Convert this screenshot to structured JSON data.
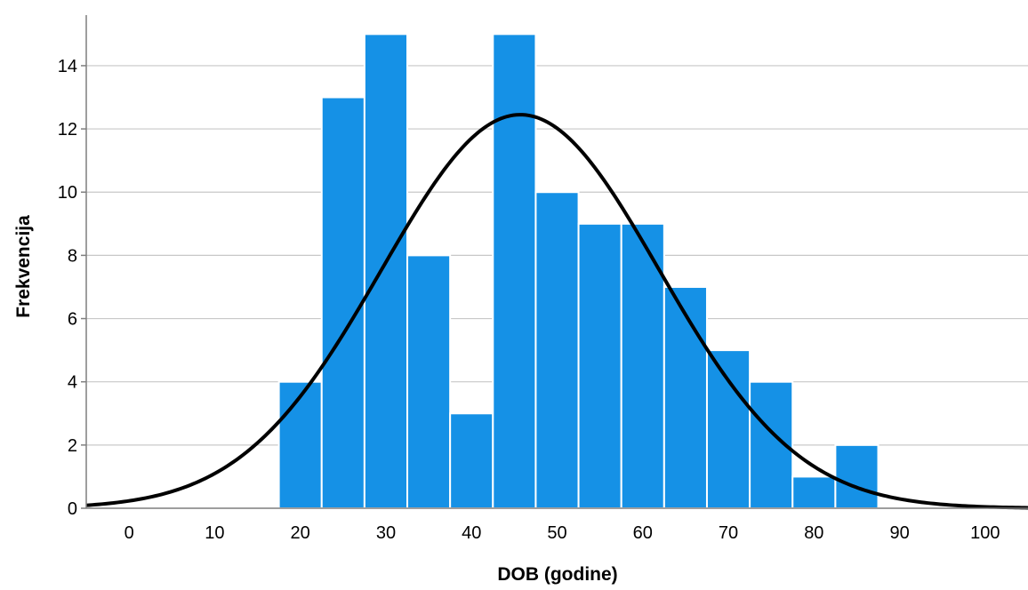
{
  "chart_data": {
    "type": "bar",
    "subtype": "histogram-with-normal-curve",
    "xlabel": "DOB (godine)",
    "ylabel": "Frekvencija",
    "xlim": [
      -5,
      105
    ],
    "ylim": [
      0,
      15.6
    ],
    "x_ticks": [
      0,
      10,
      20,
      30,
      40,
      50,
      60,
      70,
      80,
      90,
      100
    ],
    "y_ticks": [
      0,
      2,
      4,
      6,
      8,
      10,
      12,
      14
    ],
    "bin_width": 5,
    "bins": [
      {
        "start": 17.5,
        "end": 22.5,
        "count": 4
      },
      {
        "start": 22.5,
        "end": 27.5,
        "count": 13
      },
      {
        "start": 27.5,
        "end": 32.5,
        "count": 15
      },
      {
        "start": 32.5,
        "end": 37.5,
        "count": 8
      },
      {
        "start": 37.5,
        "end": 42.5,
        "count": 3
      },
      {
        "start": 42.5,
        "end": 47.5,
        "count": 15
      },
      {
        "start": 47.5,
        "end": 52.5,
        "count": 10
      },
      {
        "start": 52.5,
        "end": 57.5,
        "count": 9
      },
      {
        "start": 57.5,
        "end": 62.5,
        "count": 9
      },
      {
        "start": 62.5,
        "end": 67.5,
        "count": 7
      },
      {
        "start": 67.5,
        "end": 72.5,
        "count": 5
      },
      {
        "start": 72.5,
        "end": 77.5,
        "count": 4
      },
      {
        "start": 77.5,
        "end": 82.5,
        "count": 1
      },
      {
        "start": 82.5,
        "end": 87.5,
        "count": 2
      }
    ],
    "normal_curve": {
      "mean": 45.7,
      "sd": 16.2,
      "peak": 12.45
    },
    "grid": {
      "horizontal": true,
      "vertical": false
    },
    "colors": {
      "bar": "#1591e6",
      "bar_edge": "#ffffff",
      "curve": "#000000",
      "grid": "#c8c8c8",
      "axis": "#7f7f7f"
    }
  }
}
